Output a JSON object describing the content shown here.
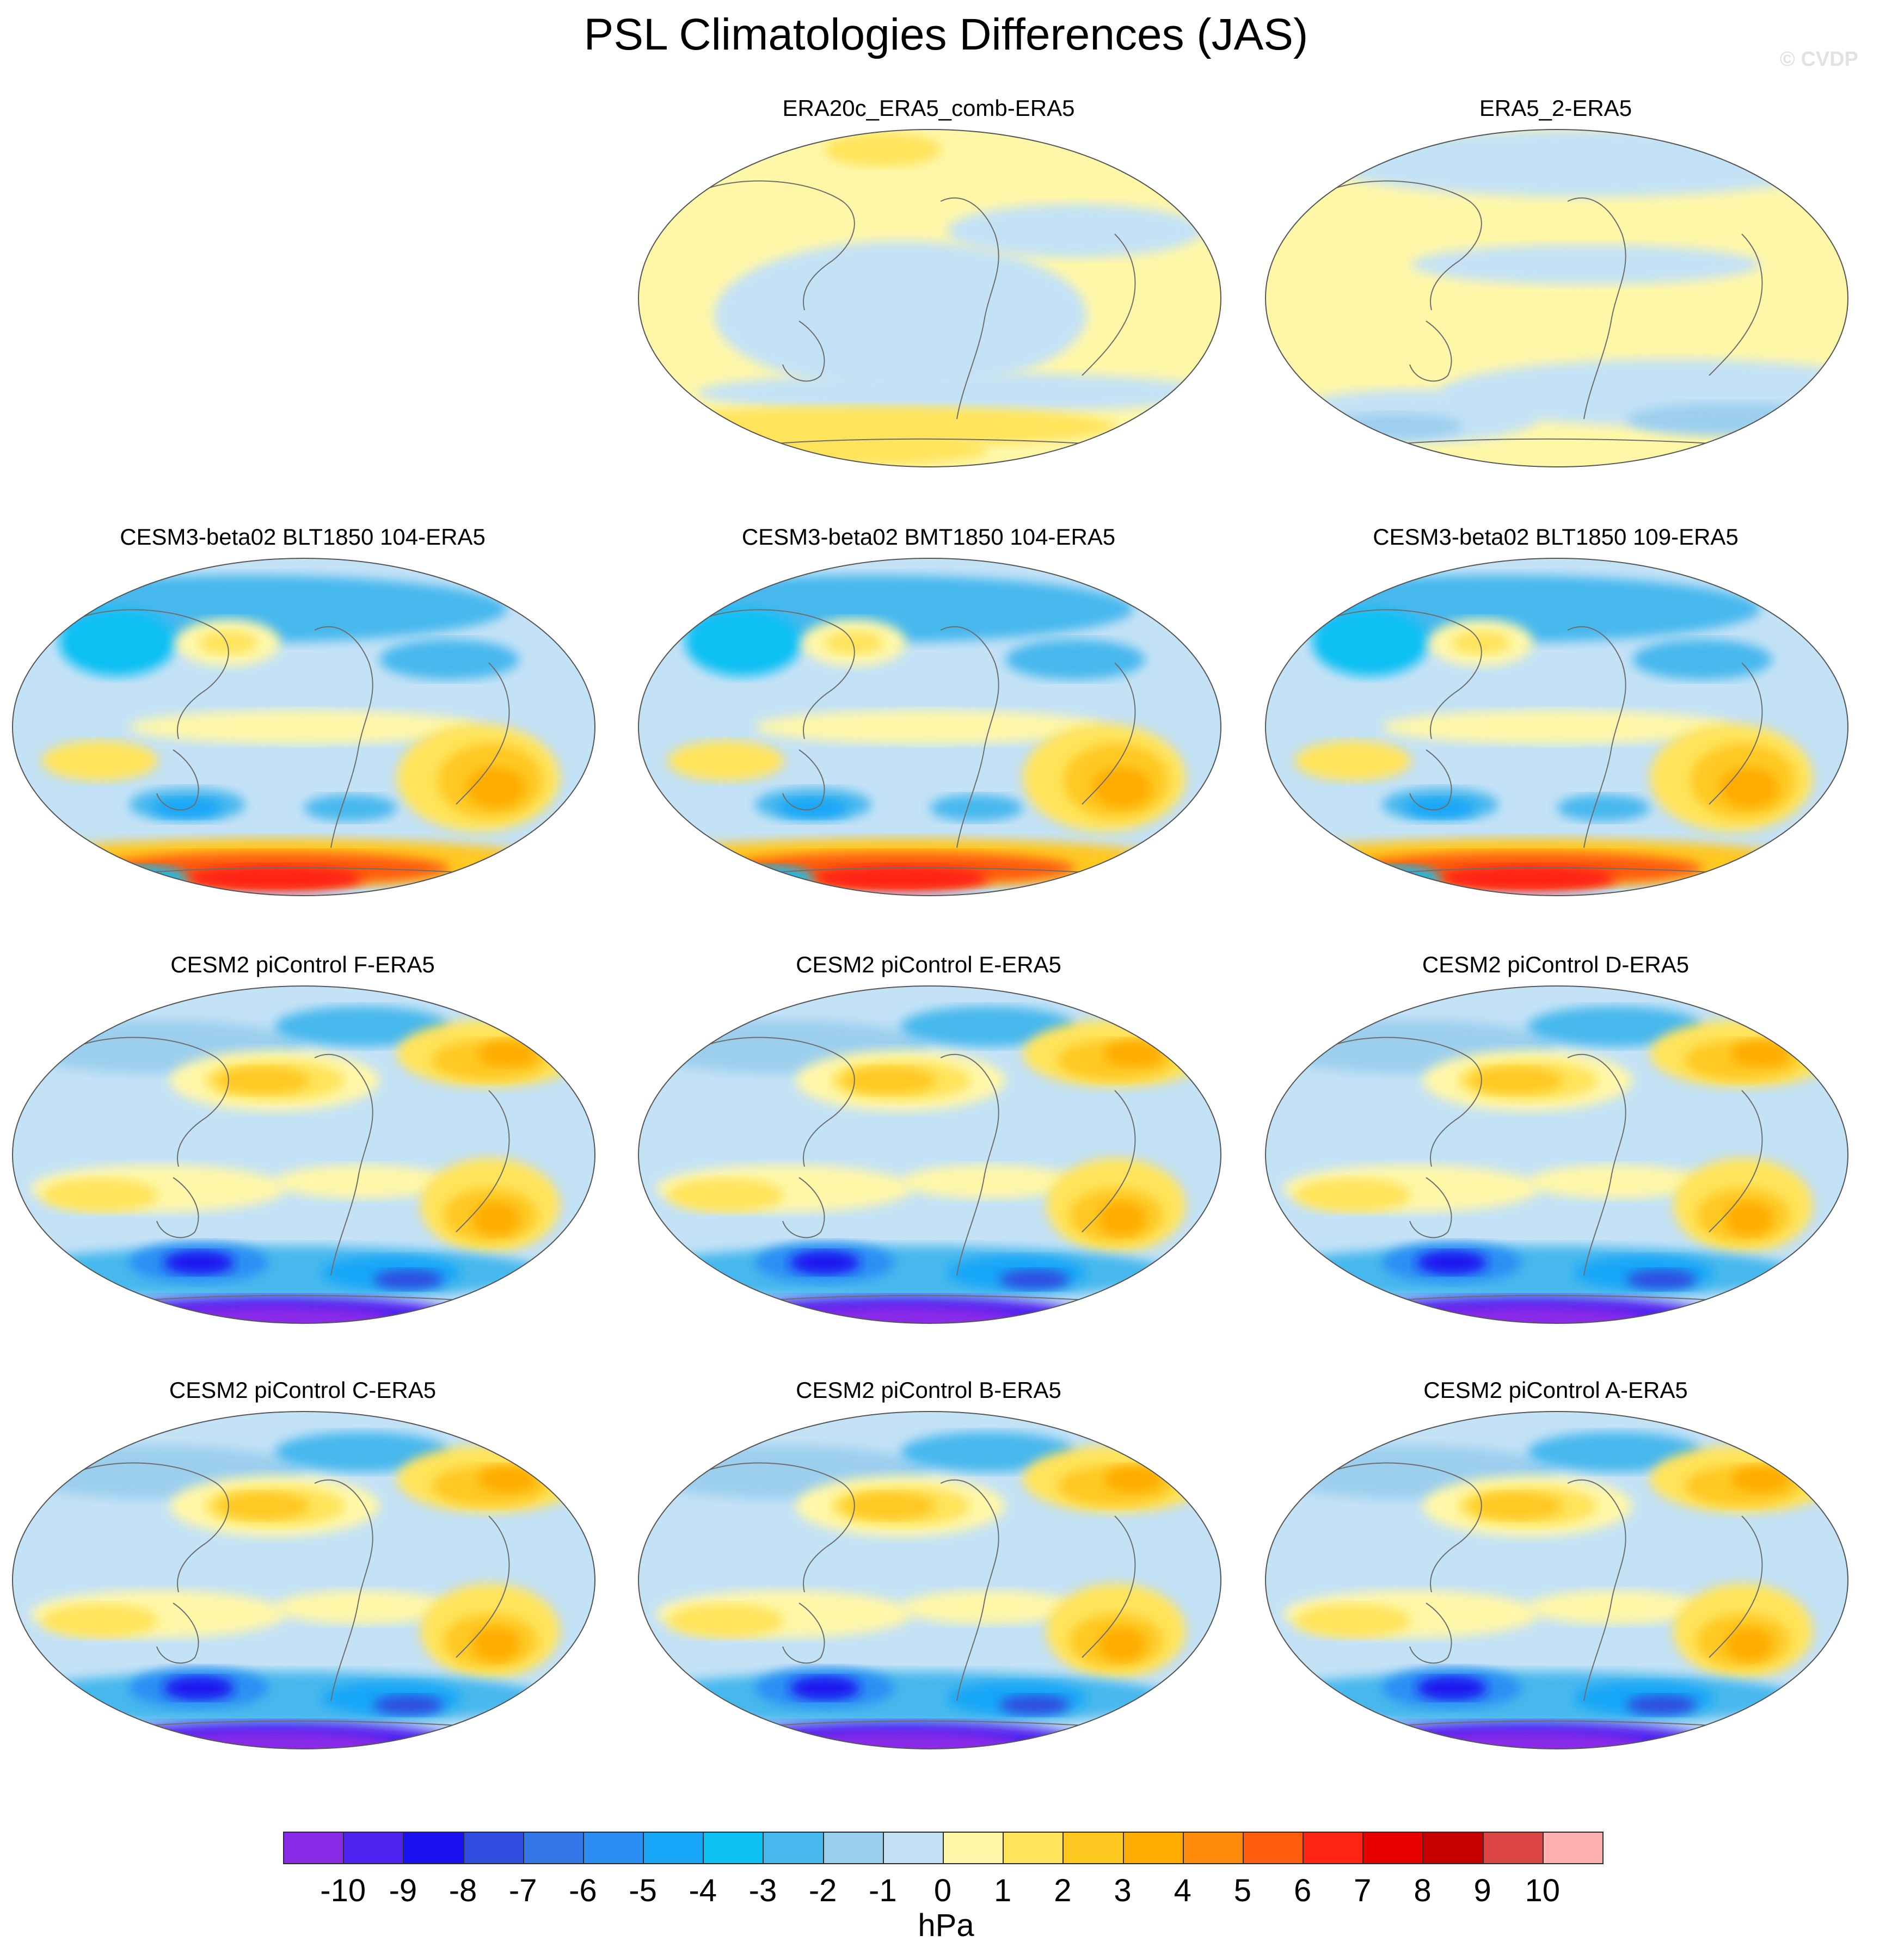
{
  "title": "PSL Climatologies Differences (JAS)",
  "watermark": "© CVDP",
  "colorbar": {
    "units": "hPa",
    "labels": [
      "-10",
      "-9",
      "-8",
      "-7",
      "-6",
      "-5",
      "-4",
      "-3",
      "-2",
      "-1",
      "0",
      "1",
      "2",
      "3",
      "4",
      "5",
      "6",
      "7",
      "8",
      "9",
      "10"
    ],
    "colors": [
      "#8a2be8",
      "#5022f0",
      "#1a12f0",
      "#2f4ee0",
      "#3477e8",
      "#2a8ef4",
      "#18a6f8",
      "#0cc0f4",
      "#46b8ee",
      "#9ccfee",
      "#c4e2f6",
      "#fff7a8",
      "#ffe35a",
      "#ffc820",
      "#ffab00",
      "#ff8a0c",
      "#ff5c0c",
      "#ff2414",
      "#e80000",
      "#c80000",
      "#dc4444",
      "#ffb0b0"
    ]
  },
  "panels": [
    {
      "title": "ERA20c_ERA5_comb-ERA5",
      "style": "reanalysis-a"
    },
    {
      "title": "ERA5_2-ERA5",
      "style": "reanalysis-b"
    },
    {
      "title": "CESM3-beta02 BLT1850 104-ERA5",
      "style": "cesm3"
    },
    {
      "title": "CESM3-beta02 BMT1850 104-ERA5",
      "style": "cesm3"
    },
    {
      "title": "CESM3-beta02 BLT1850 109-ERA5",
      "style": "cesm3"
    },
    {
      "title": "CESM2 piControl F-ERA5",
      "style": "cesm2"
    },
    {
      "title": "CESM2 piControl E-ERA5",
      "style": "cesm2"
    },
    {
      "title": "CESM2 piControl D-ERA5",
      "style": "cesm2"
    },
    {
      "title": "CESM2 piControl C-ERA5",
      "style": "cesm2"
    },
    {
      "title": "CESM2 piControl B-ERA5",
      "style": "cesm2"
    },
    {
      "title": "CESM2 piControl A-ERA5",
      "style": "cesm2"
    }
  ]
}
